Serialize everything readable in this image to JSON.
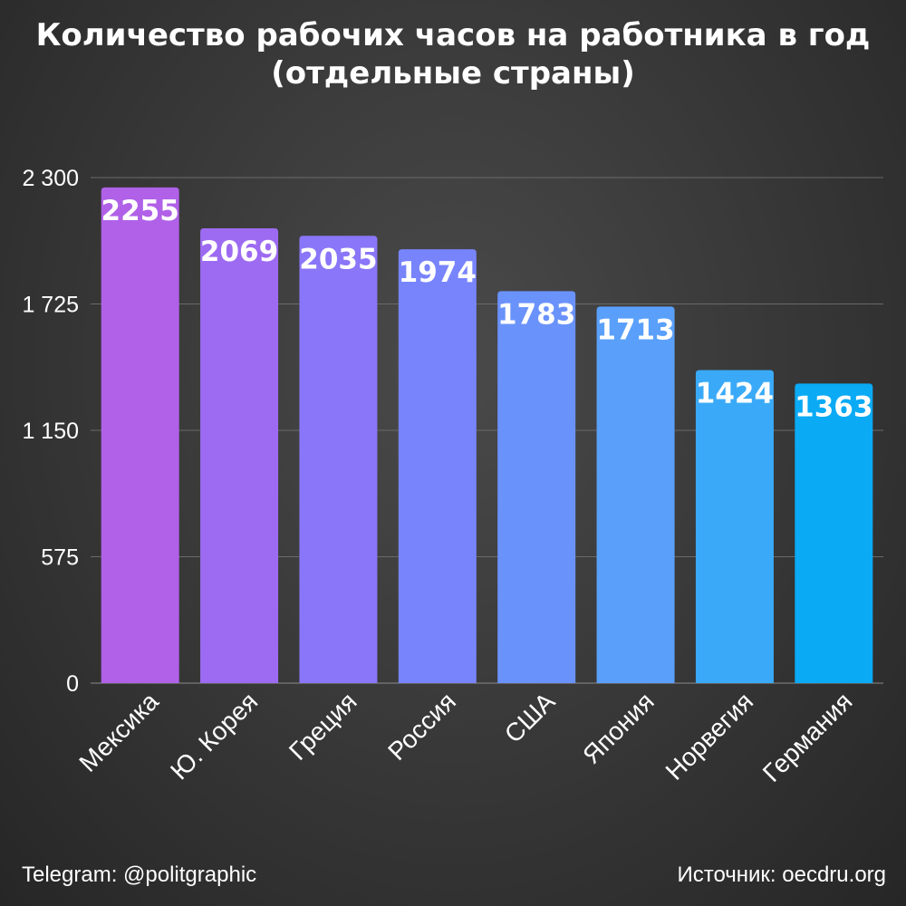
{
  "chart_data": {
    "type": "bar",
    "title_lines": [
      "Количество рабочих часов на работника в год",
      "(отдельные страны)"
    ],
    "categories": [
      "Мексика",
      "Ю. Корея",
      "Греция",
      "Россия",
      "США",
      "Япония",
      "Норвегия",
      "Германия"
    ],
    "values": [
      2255,
      2069,
      2035,
      1974,
      1783,
      1713,
      1424,
      1363
    ],
    "ylim": [
      0,
      2300
    ],
    "yticks": [
      0,
      575,
      1150,
      1725,
      2300
    ],
    "ytick_labels": [
      "0",
      "575",
      "1 150",
      "1 725",
      "2 300"
    ],
    "bar_colors": [
      "#b061e8",
      "#9d6bf2",
      "#8a76f8",
      "#7884fb",
      "#6a92fb",
      "#5aa0fb",
      "#3aaaf8",
      "#0aaaf5"
    ],
    "grid": true,
    "xlabel": "",
    "ylabel": ""
  },
  "footer": {
    "left": "Telegram: @politgraphic",
    "right": "Источник: oecdru.org"
  }
}
